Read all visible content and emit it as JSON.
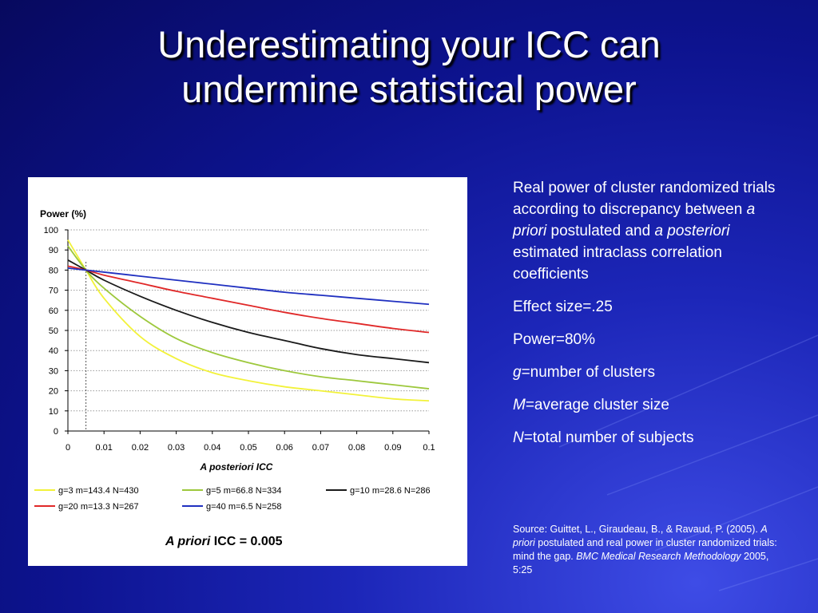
{
  "title": {
    "line1": "Underestimating your ICC can",
    "line2": "undermine statistical power"
  },
  "chart_data": {
    "type": "line",
    "ylabel": "Power (%)",
    "xlabel": "A posteriori ICC",
    "xlim": [
      0,
      0.1
    ],
    "ylim": [
      0,
      100
    ],
    "x_ticks": [
      "0",
      "0.01",
      "0.02",
      "0.03",
      "0.04",
      "0.05",
      "0.06",
      "0.07",
      "0.08",
      "0.09",
      "0.1"
    ],
    "y_ticks": [
      "0",
      "10",
      "20",
      "30",
      "40",
      "50",
      "60",
      "70",
      "80",
      "90",
      "100"
    ],
    "grid": "horizontal",
    "reference_x": 0.005,
    "x": [
      0,
      0.005,
      0.01,
      0.02,
      0.03,
      0.04,
      0.05,
      0.06,
      0.07,
      0.08,
      0.09,
      0.1
    ],
    "series": [
      {
        "name": "g=3 m=143.4 N=430",
        "color": "#f2f23a",
        "values": [
          95,
          80,
          66,
          47,
          36,
          29,
          25,
          22,
          20,
          18,
          16,
          15
        ]
      },
      {
        "name": "g=5 m=66.8 N=334",
        "color": "#9dc83c",
        "values": [
          92,
          80,
          71,
          57,
          46,
          39,
          34,
          30,
          27,
          25,
          23,
          21
        ]
      },
      {
        "name": "g=10 m=28.6 N=286",
        "color": "#1a1a1a",
        "values": [
          85,
          80,
          75,
          67,
          60,
          54,
          49,
          45,
          41,
          38,
          36,
          34
        ]
      },
      {
        "name": "g=20 m=13.3 N=267",
        "color": "#e02828",
        "values": [
          82,
          80,
          77.5,
          73.5,
          69.5,
          66,
          62.5,
          59,
          56,
          53.5,
          51,
          49
        ]
      },
      {
        "name": "g=40 m=6.5 N=258",
        "color": "#2030c0",
        "values": [
          81,
          80,
          79,
          77,
          75,
          73,
          71,
          69,
          67.5,
          66,
          64.5,
          63
        ]
      }
    ],
    "annotation_italic": "A priori",
    "annotation_rest": " ICC = 0.005"
  },
  "side": {
    "desc_1": "Real power of cluster randomized trials according to discrepancy between ",
    "desc_2": "a priori",
    "desc_3": " postulated and ",
    "desc_4": "a posteriori",
    "desc_5": " estimated intraclass correlation coefficients",
    "effect": "Effect size=.25",
    "power": "Power=80%",
    "g_sym": "g",
    "g_def": "=number of clusters",
    "m_sym": "M",
    "m_def": "=average cluster size",
    "n_sym": "N",
    "n_def": "=total number of subjects"
  },
  "source": {
    "s1": "Source:  Guittet, L., Giraudeau, B., & Ravaud, P. (2005).  ",
    "s2": "A priori",
    "s3": " postulated and real power in cluster randomized trials: mind the gap.  ",
    "s4": "BMC Medical Research Methodology",
    "s5": " 2005, 5:25"
  }
}
